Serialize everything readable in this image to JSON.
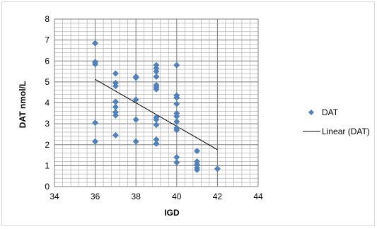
{
  "chart_data": {
    "type": "scatter",
    "title": "",
    "xlabel": "IGD",
    "ylabel": "DAT nmol/L",
    "xlim": [
      34,
      44
    ],
    "ylim": [
      0,
      8
    ],
    "x_ticks": [
      34,
      36,
      38,
      40,
      42,
      44
    ],
    "y_ticks": [
      0,
      1,
      2,
      3,
      4,
      5,
      6,
      7,
      8
    ],
    "minor_grid_x_step": 0.4,
    "minor_grid_y_step": 0.2,
    "grid": true,
    "legend_position": "right",
    "colors": {
      "points": "#4f81bd",
      "trendline": "#000000",
      "grid": "#a6a6a6",
      "major_grid": "#7f7f7f"
    },
    "series": [
      {
        "name": "DAT",
        "marker": "diamond",
        "points": [
          [
            36,
            6.85
          ],
          [
            36,
            5.95
          ],
          [
            36,
            5.85
          ],
          [
            36,
            3.05
          ],
          [
            36,
            2.15
          ],
          [
            37,
            5.4
          ],
          [
            37,
            4.95
          ],
          [
            37,
            4.8
          ],
          [
            37,
            4.05
          ],
          [
            37,
            3.8
          ],
          [
            37,
            3.55
          ],
          [
            37,
            3.4
          ],
          [
            37,
            2.45
          ],
          [
            38,
            5.25
          ],
          [
            38,
            5.2
          ],
          [
            38,
            4.15
          ],
          [
            38,
            3.2
          ],
          [
            38,
            2.15
          ],
          [
            39,
            5.8
          ],
          [
            39,
            5.65
          ],
          [
            39,
            5.5
          ],
          [
            39,
            5.25
          ],
          [
            39,
            4.85
          ],
          [
            39,
            4.75
          ],
          [
            39,
            4.65
          ],
          [
            39,
            3.3
          ],
          [
            39,
            3.2
          ],
          [
            39,
            2.95
          ],
          [
            39,
            2.25
          ],
          [
            39,
            2.05
          ],
          [
            40,
            5.8
          ],
          [
            40,
            4.35
          ],
          [
            40,
            4.25
          ],
          [
            40,
            3.95
          ],
          [
            40,
            3.5
          ],
          [
            40,
            3.35
          ],
          [
            40,
            3.1
          ],
          [
            40,
            2.8
          ],
          [
            40,
            2.7
          ],
          [
            40,
            1.4
          ],
          [
            40,
            1.15
          ],
          [
            41,
            1.7
          ],
          [
            41,
            1.2
          ],
          [
            41,
            1.05
          ],
          [
            41,
            0.9
          ],
          [
            41,
            0.8
          ],
          [
            42,
            0.85
          ]
        ]
      },
      {
        "name": "Linear (DAT)",
        "type": "line",
        "points": [
          [
            36,
            5.12
          ],
          [
            42,
            1.76
          ]
        ]
      }
    ]
  }
}
